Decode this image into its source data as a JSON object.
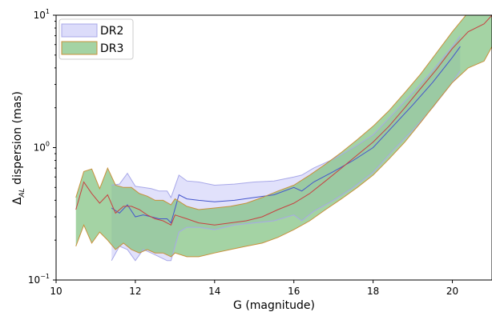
{
  "chart_data": {
    "type": "area",
    "xlabel": "G (magnitude)",
    "ylabel": "Δ",
    "ylabel_sub": "AL",
    "ylabel_rest": " dispersion (mas)",
    "xlim": [
      10,
      21
    ],
    "ylim": [
      0.1,
      10
    ],
    "yscale": "log",
    "xticks": [
      10,
      12,
      14,
      16,
      18,
      20
    ],
    "xtick_labels": [
      "10",
      "12",
      "14",
      "16",
      "18",
      "20"
    ],
    "yticks": [
      0.1,
      1,
      10
    ],
    "ytick_labels": [
      {
        "base": "10",
        "exp": "−1"
      },
      {
        "base": "10",
        "exp": "0"
      },
      {
        "base": "10",
        "exp": "1"
      }
    ],
    "grid": false,
    "legend": {
      "position": "top-left"
    },
    "series": [
      {
        "name": "DR2",
        "fill": "#dcdcfa",
        "fill_opacity": 0.85,
        "edge": "#a8a8e8",
        "line": "#4455cc",
        "x": [
          11.4,
          11.6,
          11.8,
          12.0,
          12.2,
          12.4,
          12.6,
          12.8,
          12.9,
          13.1,
          13.3,
          13.6,
          14.0,
          14.5,
          15.0,
          15.5,
          16.0,
          16.2,
          16.5,
          17.0,
          17.5,
          18.0,
          18.5,
          19.0,
          19.5,
          20.0,
          20.2
        ],
        "upper": [
          0.52,
          0.53,
          0.64,
          0.51,
          0.5,
          0.49,
          0.47,
          0.47,
          0.42,
          0.62,
          0.56,
          0.55,
          0.52,
          0.53,
          0.55,
          0.56,
          0.6,
          0.62,
          0.7,
          0.82,
          1.0,
          1.25,
          1.8,
          2.6,
          3.8,
          5.8,
          7.0
        ],
        "center": [
          0.35,
          0.32,
          0.37,
          0.3,
          0.31,
          0.3,
          0.29,
          0.29,
          0.27,
          0.44,
          0.41,
          0.4,
          0.39,
          0.4,
          0.42,
          0.44,
          0.5,
          0.47,
          0.55,
          0.66,
          0.8,
          1.0,
          1.45,
          2.1,
          3.1,
          4.8,
          5.8
        ],
        "lower": [
          0.14,
          0.18,
          0.17,
          0.14,
          0.17,
          0.16,
          0.15,
          0.14,
          0.14,
          0.23,
          0.25,
          0.25,
          0.24,
          0.26,
          0.27,
          0.28,
          0.31,
          0.28,
          0.33,
          0.4,
          0.5,
          0.65,
          0.95,
          1.35,
          2.0,
          3.1,
          3.8
        ]
      },
      {
        "name": "DR3",
        "fill": "#7ec07e",
        "fill_opacity": 0.7,
        "edge": "#c8903a",
        "line": "#c84040",
        "x": [
          10.5,
          10.7,
          10.9,
          11.1,
          11.3,
          11.5,
          11.7,
          11.9,
          12.1,
          12.3,
          12.5,
          12.7,
          12.9,
          13.0,
          13.3,
          13.6,
          14.0,
          14.4,
          14.8,
          15.2,
          15.6,
          16.0,
          16.4,
          16.8,
          17.2,
          17.6,
          18.0,
          18.4,
          18.8,
          19.2,
          19.6,
          20.0,
          20.4,
          20.8,
          21.0
        ],
        "upper": [
          0.42,
          0.66,
          0.69,
          0.49,
          0.7,
          0.52,
          0.5,
          0.5,
          0.45,
          0.43,
          0.4,
          0.4,
          0.37,
          0.41,
          0.36,
          0.34,
          0.35,
          0.36,
          0.38,
          0.42,
          0.47,
          0.52,
          0.62,
          0.75,
          0.92,
          1.15,
          1.45,
          1.9,
          2.6,
          3.6,
          5.2,
          7.5,
          10.5,
          13.0,
          14.0
        ],
        "center": [
          0.34,
          0.55,
          0.45,
          0.38,
          0.44,
          0.32,
          0.36,
          0.36,
          0.34,
          0.31,
          0.29,
          0.28,
          0.26,
          0.31,
          0.29,
          0.27,
          0.26,
          0.27,
          0.28,
          0.3,
          0.34,
          0.38,
          0.45,
          0.56,
          0.7,
          0.88,
          1.1,
          1.45,
          2.0,
          2.8,
          3.9,
          5.6,
          7.5,
          8.6,
          10.0
        ],
        "lower": [
          0.18,
          0.26,
          0.19,
          0.23,
          0.2,
          0.17,
          0.19,
          0.17,
          0.16,
          0.17,
          0.16,
          0.16,
          0.15,
          0.16,
          0.15,
          0.15,
          0.16,
          0.17,
          0.18,
          0.19,
          0.21,
          0.24,
          0.28,
          0.34,
          0.41,
          0.5,
          0.62,
          0.82,
          1.1,
          1.55,
          2.2,
          3.1,
          4.0,
          4.5,
          5.8
        ]
      }
    ]
  }
}
